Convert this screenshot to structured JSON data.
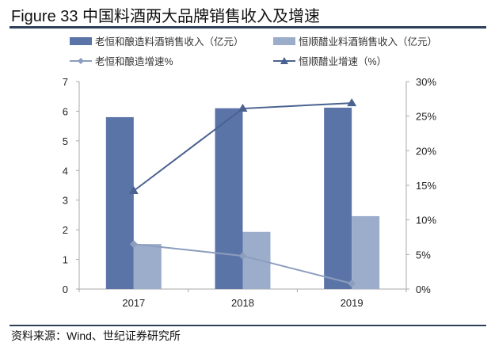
{
  "title": "Figure 33  中国料酒两大品牌销售收入及增速",
  "source": "资料来源：Wind、世纪证券研究所",
  "chart_data": {
    "type": "bar",
    "categories": [
      "2017",
      "2018",
      "2019"
    ],
    "series": [
      {
        "name": "老恒和酿造料酒销售收入（亿元）",
        "kind": "bar",
        "axis": "left",
        "color": "#5b74a8",
        "values": [
          5.8,
          6.1,
          6.12
        ]
      },
      {
        "name": "恒顺醋业料酒销售收入（亿元）",
        "kind": "bar",
        "axis": "left",
        "color": "#9cadcc",
        "values": [
          1.52,
          1.93,
          2.46
        ]
      },
      {
        "name": "老恒和酿造增速%",
        "kind": "line",
        "marker": "diamond",
        "axis": "right",
        "color": "#8c9dbd",
        "values": [
          6.5,
          4.8,
          0.8
        ]
      },
      {
        "name": "恒顺醋业增速（%）",
        "kind": "line",
        "marker": "triangle",
        "axis": "right",
        "color": "#4a6290",
        "values": [
          14.2,
          26.1,
          26.9
        ]
      }
    ],
    "y_left": {
      "range": [
        0,
        7
      ],
      "ticks": [
        "0",
        "1",
        "2",
        "3",
        "4",
        "5",
        "6",
        "7"
      ]
    },
    "y_right": {
      "range": [
        0,
        30
      ],
      "ticks": [
        "0%",
        "5%",
        "10%",
        "15%",
        "20%",
        "25%",
        "30%"
      ]
    },
    "legend_position": "top",
    "grid": false
  }
}
